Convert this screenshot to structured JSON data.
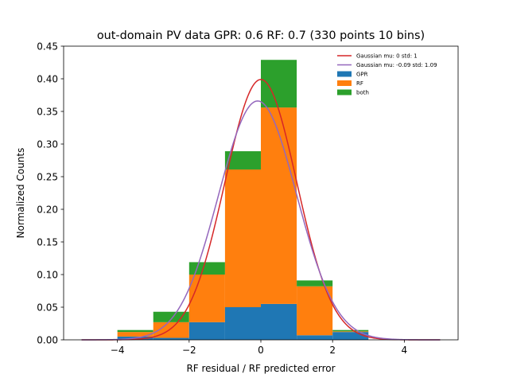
{
  "chart_data": {
    "type": "histogram",
    "title": "out-domain PV data GPR: 0.6 RF: 0.7 (330 points 10 bins)",
    "xlabel": "RF residual / RF predicted error",
    "ylabel": "Normalized Counts",
    "xlim": [
      -5.5,
      5.5
    ],
    "ylim": [
      0,
      0.45
    ],
    "xticks": [
      -4,
      -2,
      0,
      2,
      4
    ],
    "xtick_labels": [
      "−4",
      "−2",
      "0",
      "2",
      "4"
    ],
    "yticks": [
      0.0,
      0.05,
      0.1,
      0.15,
      0.2,
      0.25,
      0.3,
      0.35,
      0.4,
      0.45
    ],
    "ytick_labels": [
      "0.00",
      "0.05",
      "0.10",
      "0.15",
      "0.20",
      "0.25",
      "0.30",
      "0.35",
      "0.40",
      "0.45"
    ],
    "grid": false,
    "legend_position": "top-right",
    "bins": [
      {
        "x0": -4,
        "x1": -3,
        "gpr": 0.005,
        "rf": 0.007,
        "both": 0.003
      },
      {
        "x0": -3,
        "x1": -2,
        "gpr": 0.003,
        "rf": 0.024,
        "both": 0.016
      },
      {
        "x0": -2,
        "x1": -1,
        "gpr": 0.027,
        "rf": 0.073,
        "both": 0.019
      },
      {
        "x0": -1,
        "x1": 0,
        "gpr": 0.05,
        "rf": 0.211,
        "both": 0.028
      },
      {
        "x0": 0,
        "x1": 1,
        "gpr": 0.055,
        "rf": 0.301,
        "both": 0.073
      },
      {
        "x0": 1,
        "x1": 2,
        "gpr": 0.007,
        "rf": 0.075,
        "both": 0.009
      },
      {
        "x0": 2,
        "x1": 3,
        "gpr": 0.012,
        "rf": 0.001,
        "both": 0.002
      }
    ],
    "stack_series": [
      {
        "key": "gpr",
        "name": "GPR",
        "color": "#1f77b4"
      },
      {
        "key": "rf",
        "name": "RF",
        "color": "#ff7f0e"
      },
      {
        "key": "both",
        "name": "both",
        "color": "#2ca02c"
      }
    ],
    "curves": [
      {
        "name": "Gaussian mu: 0 std: 1",
        "mu": 0,
        "std": 1,
        "color": "#d62728",
        "x_range": [
          -5,
          5
        ]
      },
      {
        "name": "Gaussian mu: -0.09 std: 1.09",
        "mu": -0.09,
        "std": 1.09,
        "color": "#9467bd",
        "x_range": [
          -5,
          5
        ]
      }
    ]
  }
}
